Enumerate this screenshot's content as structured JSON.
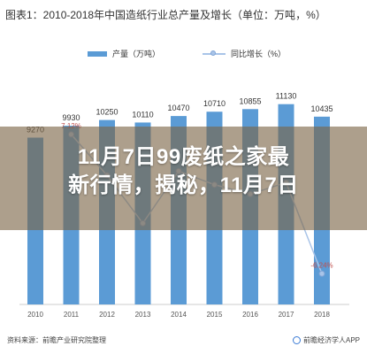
{
  "header": {
    "title": "图表1：2010-2018年中国造纸行业总产量及增长（单位：万吨，%）"
  },
  "overlay": {
    "line1": "11月7日99废纸之家最",
    "line2": "新行情，揭秘，11月7日"
  },
  "footer": {
    "source": "资料来源：前瞻产业研究院整理",
    "brand": "前瞻经济学人APP"
  },
  "colors": {
    "bar": "#5b9bd5",
    "line": "#a9c4e8",
    "marker_stroke": "#7fa4d6",
    "overlay": "#7a6446"
  },
  "chart_data": {
    "type": "bar",
    "categories": [
      "2010",
      "2011",
      "2012",
      "2013",
      "2014",
      "2015",
      "2016",
      "2017",
      "2018"
    ],
    "series": [
      {
        "name": "产量（万吨）",
        "type": "bar",
        "values": [
          9270,
          9930,
          10250,
          10110,
          10470,
          10710,
          10855,
          11130,
          10435
        ]
      },
      {
        "name": "同比增长（%）",
        "type": "line",
        "values": [
          null,
          7.12,
          null,
          null,
          null,
          null,
          null,
          null,
          -6.24
        ]
      }
    ],
    "value_labels": [
      "9270",
      "9930",
      "10250",
      "10110",
      "10470",
      "10710",
      "10855",
      "11130",
      "10435"
    ],
    "line_labels": {
      "1": "7.12%",
      "8": "-6.24%"
    },
    "growth_estimated": [
      null,
      7.12,
      3.2,
      -1.4,
      3.6,
      2.3,
      1.4,
      2.5,
      -6.24
    ],
    "title": "图表1：2010-2018年中国造纸行业总产量及增长（单位：万吨，%）",
    "xlabel": "",
    "ylabel": "",
    "ylim": [
      0,
      12000
    ],
    "grid": false,
    "legend": "top-center"
  }
}
